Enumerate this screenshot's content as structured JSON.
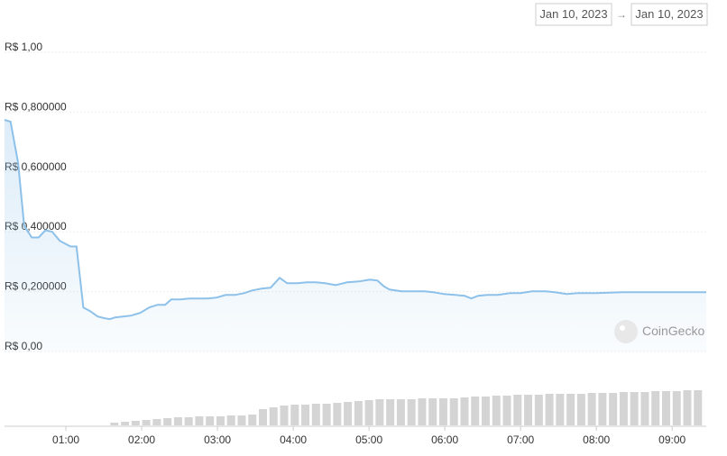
{
  "header": {
    "date_from": "Jan 10, 2023",
    "date_to": "Jan 10, 2023"
  },
  "watermark": "CoinGecko",
  "chart_data": {
    "type": "line",
    "x": [
      0.19,
      0.27,
      0.37,
      0.45,
      0.55,
      0.64,
      0.73,
      0.82,
      0.92,
      1.06,
      1.14,
      1.23,
      1.32,
      1.42,
      1.51,
      1.58,
      1.65,
      1.75,
      1.86,
      1.98,
      2.1,
      2.21,
      2.31,
      2.39,
      2.51,
      2.63,
      2.75,
      2.87,
      2.99,
      3.11,
      3.23,
      3.35,
      3.46,
      3.58,
      3.7,
      3.82,
      3.92,
      4.06,
      4.18,
      4.3,
      4.42,
      4.56,
      4.71,
      4.87,
      5.01,
      5.11,
      5.19,
      5.27,
      5.43,
      5.58,
      5.73,
      5.85,
      5.99,
      6.14,
      6.26,
      6.35,
      6.44,
      6.56,
      6.7,
      6.86,
      7.0,
      7.15,
      7.33,
      7.45,
      7.61,
      7.75,
      7.99,
      8.35,
      8.7,
      9.06,
      9.45
    ],
    "values": [
      0.774,
      0.768,
      0.63,
      0.42,
      0.381,
      0.381,
      0.405,
      0.4,
      0.37,
      0.351,
      0.351,
      0.147,
      0.135,
      0.117,
      0.111,
      0.108,
      0.114,
      0.117,
      0.12,
      0.129,
      0.147,
      0.156,
      0.156,
      0.174,
      0.174,
      0.177,
      0.177,
      0.177,
      0.18,
      0.189,
      0.189,
      0.195,
      0.204,
      0.21,
      0.213,
      0.246,
      0.228,
      0.228,
      0.231,
      0.231,
      0.228,
      0.222,
      0.231,
      0.234,
      0.24,
      0.237,
      0.219,
      0.207,
      0.201,
      0.201,
      0.201,
      0.198,
      0.192,
      0.189,
      0.186,
      0.177,
      0.186,
      0.189,
      0.189,
      0.195,
      0.195,
      0.201,
      0.201,
      0.198,
      0.192,
      0.195,
      0.195,
      0.198,
      0.198,
      0.198,
      0.198
    ],
    "color": "#8dc1e9",
    "xlim": [
      0.19,
      9.45
    ],
    "xticks": [
      {
        "value": 1,
        "label": "01:00"
      },
      {
        "value": 2,
        "label": "02:00"
      },
      {
        "value": 3,
        "label": "03:00"
      },
      {
        "value": 4,
        "label": "04:00"
      },
      {
        "value": 5,
        "label": "05:00"
      },
      {
        "value": 6,
        "label": "06:00"
      },
      {
        "value": 7,
        "label": "07:00"
      },
      {
        "value": 8,
        "label": "08:00"
      },
      {
        "value": 9,
        "label": "09:00"
      }
    ],
    "ylim": [
      0,
      1
    ],
    "yticks": [
      {
        "value": 0,
        "label": "R$ 0,00"
      },
      {
        "value": 0.2,
        "label": "R$ 0,200000"
      },
      {
        "value": 0.4,
        "label": "R$ 0,400000"
      },
      {
        "value": 0.6,
        "label": "R$ 0,600000"
      },
      {
        "value": 0.8,
        "label": "R$ 0,800000"
      },
      {
        "value": 1,
        "label": "R$ 1,00"
      }
    ],
    "grid": true,
    "volume": {
      "color": "#d4d4d4",
      "ylim": [
        0,
        40
      ],
      "x": [
        1.64,
        1.78,
        1.92,
        2.06,
        2.2,
        2.34,
        2.48,
        2.62,
        2.76,
        2.9,
        3.04,
        3.18,
        3.32,
        3.46,
        3.6,
        3.74,
        3.88,
        4.02,
        4.16,
        4.3,
        4.44,
        4.58,
        4.72,
        4.86,
        5.0,
        5.14,
        5.28,
        5.42,
        5.56,
        5.7,
        5.84,
        5.98,
        6.12,
        6.26,
        6.4,
        6.54,
        6.68,
        6.82,
        6.96,
        7.1,
        7.24,
        7.38,
        7.52,
        7.66,
        7.8,
        7.94,
        8.08,
        8.22,
        8.36,
        8.5,
        8.64,
        8.78,
        8.92,
        9.06,
        9.2,
        9.34
      ],
      "values": [
        3,
        4,
        5,
        6,
        7,
        8,
        9,
        9,
        10,
        10,
        10,
        11,
        11,
        12,
        18,
        20,
        22,
        23,
        23,
        24,
        24,
        25,
        26,
        27,
        28,
        29,
        29,
        29,
        29,
        30,
        30,
        30,
        30,
        31,
        32,
        32,
        33,
        33,
        34,
        34,
        34,
        35,
        35,
        35,
        35,
        36,
        36,
        36,
        37,
        37,
        37,
        38,
        38,
        38,
        39,
        39
      ]
    }
  }
}
